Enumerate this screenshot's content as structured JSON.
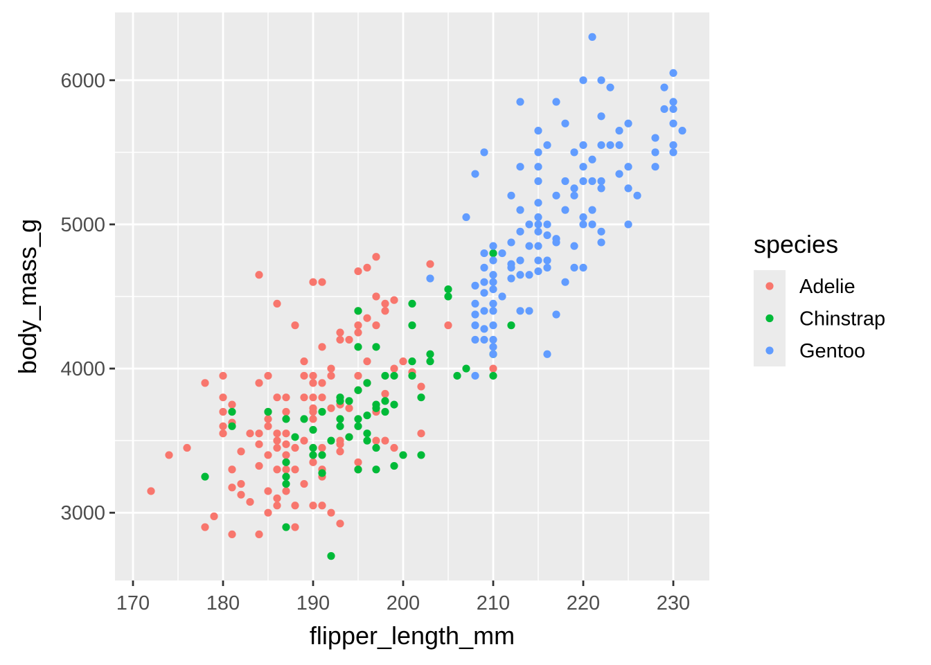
{
  "chart_data": {
    "type": "scatter",
    "title": "",
    "xlabel": "flipper_length_mm",
    "ylabel": "body_mass_g",
    "xlim": [
      168,
      234
    ],
    "ylim": [
      2530,
      6470
    ],
    "x_ticks": [
      170,
      180,
      190,
      200,
      210,
      220,
      230
    ],
    "y_ticks": [
      3000,
      4000,
      5000,
      6000
    ],
    "grid": true,
    "legend": {
      "title": "species",
      "position": "right"
    },
    "colors": {
      "panel": "#EBEBEB",
      "grid": "#FFFFFF"
    },
    "series": [
      {
        "name": "Adelie",
        "color": "#F8766D",
        "points": [
          [
            172,
            3150
          ],
          [
            174,
            3400
          ],
          [
            176,
            3450
          ],
          [
            178,
            3900
          ],
          [
            178,
            2900
          ],
          [
            179,
            2975
          ],
          [
            180,
            3950
          ],
          [
            180,
            3800
          ],
          [
            180,
            3700
          ],
          [
            180,
            3600
          ],
          [
            180,
            3550
          ],
          [
            181,
            3750
          ],
          [
            181,
            3625
          ],
          [
            181,
            3300
          ],
          [
            181,
            3175
          ],
          [
            181,
            2850
          ],
          [
            182,
            3425
          ],
          [
            182,
            3200
          ],
          [
            182,
            3125
          ],
          [
            183,
            3550
          ],
          [
            183,
            3075
          ],
          [
            184,
            4650
          ],
          [
            184,
            3900
          ],
          [
            184,
            3550
          ],
          [
            184,
            3475
          ],
          [
            184,
            3325
          ],
          [
            184,
            2850
          ],
          [
            185,
            3950
          ],
          [
            185,
            3700
          ],
          [
            185,
            3650
          ],
          [
            185,
            3600
          ],
          [
            185,
            3400
          ],
          [
            185,
            3150
          ],
          [
            185,
            3000
          ],
          [
            186,
            4450
          ],
          [
            186,
            3800
          ],
          [
            186,
            3550
          ],
          [
            186,
            3500
          ],
          [
            186,
            3450
          ],
          [
            186,
            3300
          ],
          [
            186,
            3100
          ],
          [
            186,
            3050
          ],
          [
            187,
            3800
          ],
          [
            187,
            3700
          ],
          [
            187,
            3550
          ],
          [
            187,
            3475
          ],
          [
            187,
            3400
          ],
          [
            187,
            3300
          ],
          [
            187,
            3150
          ],
          [
            188,
            4300
          ],
          [
            188,
            3450
          ],
          [
            188,
            3300
          ],
          [
            188,
            3050
          ],
          [
            188,
            2900
          ],
          [
            189,
            4050
          ],
          [
            189,
            3950
          ],
          [
            189,
            3800
          ],
          [
            189,
            3500
          ],
          [
            189,
            3200
          ],
          [
            190,
            4600
          ],
          [
            190,
            3950
          ],
          [
            190,
            3900
          ],
          [
            190,
            3800
          ],
          [
            190,
            3725
          ],
          [
            190,
            3700
          ],
          [
            190,
            3650
          ],
          [
            190,
            3450
          ],
          [
            190,
            3350
          ],
          [
            190,
            3050
          ],
          [
            191,
            4600
          ],
          [
            191,
            4150
          ],
          [
            191,
            3900
          ],
          [
            191,
            3800
          ],
          [
            191,
            3450
          ],
          [
            191,
            3300
          ],
          [
            191,
            3250
          ],
          [
            191,
            3050
          ],
          [
            192,
            4000
          ],
          [
            192,
            3950
          ],
          [
            192,
            3725
          ],
          [
            192,
            3000
          ],
          [
            193,
            4250
          ],
          [
            193,
            4200
          ],
          [
            193,
            3750
          ],
          [
            193,
            3500
          ],
          [
            193,
            3475
          ],
          [
            193,
            3425
          ],
          [
            193,
            2925
          ],
          [
            194,
            4200
          ],
          [
            194,
            3725
          ],
          [
            194,
            3525
          ],
          [
            195,
            4675
          ],
          [
            195,
            4400
          ],
          [
            195,
            4300
          ],
          [
            195,
            4250
          ],
          [
            195,
            3950
          ],
          [
            195,
            3850
          ],
          [
            195,
            3350
          ],
          [
            195,
            3300
          ],
          [
            196,
            4700
          ],
          [
            196,
            4350
          ],
          [
            196,
            4050
          ],
          [
            196,
            3900
          ],
          [
            197,
            4775
          ],
          [
            197,
            4500
          ],
          [
            197,
            4300
          ],
          [
            197,
            3700
          ],
          [
            197,
            3500
          ],
          [
            198,
            4450
          ],
          [
            198,
            4400
          ],
          [
            198,
            3825
          ],
          [
            198,
            3500
          ],
          [
            199,
            4475
          ],
          [
            199,
            4000
          ],
          [
            199,
            3450
          ],
          [
            200,
            4050
          ],
          [
            201,
            3975
          ],
          [
            202,
            3875
          ],
          [
            202,
            3550
          ],
          [
            203,
            4725
          ],
          [
            205,
            4300
          ],
          [
            210,
            4000
          ]
        ]
      },
      {
        "name": "Chinstrap",
        "color": "#00BA38",
        "points": [
          [
            178,
            3250
          ],
          [
            181,
            3700
          ],
          [
            181,
            3600
          ],
          [
            185,
            3700
          ],
          [
            187,
            3650
          ],
          [
            187,
            3350
          ],
          [
            187,
            3250
          ],
          [
            187,
            3200
          ],
          [
            187,
            2900
          ],
          [
            188,
            3525
          ],
          [
            189,
            3650
          ],
          [
            190,
            3575
          ],
          [
            190,
            3450
          ],
          [
            190,
            3400
          ],
          [
            191,
            3700
          ],
          [
            191,
            3400
          ],
          [
            191,
            3275
          ],
          [
            192,
            3500
          ],
          [
            192,
            2700
          ],
          [
            193,
            3800
          ],
          [
            193,
            3775
          ],
          [
            193,
            3650
          ],
          [
            193,
            3600
          ],
          [
            194,
            3775
          ],
          [
            194,
            3525
          ],
          [
            195,
            4400
          ],
          [
            195,
            4150
          ],
          [
            195,
            3850
          ],
          [
            195,
            3650
          ],
          [
            195,
            3600
          ],
          [
            195,
            3300
          ],
          [
            196,
            3900
          ],
          [
            196,
            3675
          ],
          [
            196,
            3550
          ],
          [
            196,
            3500
          ],
          [
            197,
            4150
          ],
          [
            197,
            3750
          ],
          [
            197,
            3725
          ],
          [
            197,
            3450
          ],
          [
            197,
            3300
          ],
          [
            198,
            3950
          ],
          [
            198,
            3775
          ],
          [
            198,
            3700
          ],
          [
            199,
            3950
          ],
          [
            199,
            3750
          ],
          [
            199,
            3325
          ],
          [
            200,
            3400
          ],
          [
            201,
            4450
          ],
          [
            201,
            4300
          ],
          [
            201,
            4050
          ],
          [
            201,
            3950
          ],
          [
            202,
            3800
          ],
          [
            202,
            3400
          ],
          [
            203,
            4100
          ],
          [
            203,
            4050
          ],
          [
            205,
            4550
          ],
          [
            205,
            4500
          ],
          [
            206,
            3950
          ],
          [
            207,
            4000
          ],
          [
            210,
            4800
          ],
          [
            210,
            4100
          ],
          [
            210,
            3950
          ],
          [
            212,
            4300
          ]
        ]
      },
      {
        "name": "Gentoo",
        "color": "#619CFF",
        "points": [
          [
            203,
            4625
          ],
          [
            207,
            5050
          ],
          [
            208,
            5350
          ],
          [
            208,
            4575
          ],
          [
            208,
            4450
          ],
          [
            208,
            4375
          ],
          [
            208,
            4300
          ],
          [
            208,
            4200
          ],
          [
            208,
            3950
          ],
          [
            209,
            5500
          ],
          [
            209,
            4800
          ],
          [
            209,
            4700
          ],
          [
            209,
            4600
          ],
          [
            209,
            4525
          ],
          [
            209,
            4400
          ],
          [
            209,
            4275
          ],
          [
            209,
            4200
          ],
          [
            210,
            4850
          ],
          [
            210,
            4750
          ],
          [
            210,
            4650
          ],
          [
            210,
            4600
          ],
          [
            210,
            4550
          ],
          [
            210,
            4450
          ],
          [
            210,
            4400
          ],
          [
            210,
            4300
          ],
          [
            210,
            4200
          ],
          [
            210,
            4150
          ],
          [
            210,
            4100
          ],
          [
            211,
            4800
          ],
          [
            211,
            4500
          ],
          [
            212,
            5200
          ],
          [
            212,
            4875
          ],
          [
            212,
            4725
          ],
          [
            212,
            4700
          ],
          [
            212,
            4625
          ],
          [
            213,
            5850
          ],
          [
            213,
            5400
          ],
          [
            213,
            5100
          ],
          [
            213,
            4950
          ],
          [
            213,
            4750
          ],
          [
            213,
            4650
          ],
          [
            213,
            4400
          ],
          [
            214,
            5000
          ],
          [
            214,
            4850
          ],
          [
            214,
            4650
          ],
          [
            214,
            4400
          ],
          [
            215,
            5650
          ],
          [
            215,
            5500
          ],
          [
            215,
            5400
          ],
          [
            215,
            5300
          ],
          [
            215,
            5150
          ],
          [
            215,
            5050
          ],
          [
            215,
            5000
          ],
          [
            215,
            4950
          ],
          [
            215,
            4850
          ],
          [
            215,
            4750
          ],
          [
            215,
            4675
          ],
          [
            216,
            5550
          ],
          [
            216,
            5000
          ],
          [
            216,
            4925
          ],
          [
            216,
            4750
          ],
          [
            216,
            4700
          ],
          [
            216,
            4100
          ],
          [
            217,
            5850
          ],
          [
            217,
            5200
          ],
          [
            217,
            4900
          ],
          [
            217,
            4875
          ],
          [
            217,
            4375
          ],
          [
            218,
            5700
          ],
          [
            218,
            5300
          ],
          [
            218,
            5100
          ],
          [
            218,
            4600
          ],
          [
            219,
            5500
          ],
          [
            219,
            5250
          ],
          [
            219,
            5200
          ],
          [
            219,
            4850
          ],
          [
            219,
            4700
          ],
          [
            220,
            6000
          ],
          [
            220,
            5550
          ],
          [
            220,
            5400
          ],
          [
            220,
            5300
          ],
          [
            220,
            5050
          ],
          [
            220,
            5000
          ],
          [
            220,
            4700
          ],
          [
            221,
            6300
          ],
          [
            221,
            5450
          ],
          [
            221,
            5300
          ],
          [
            221,
            5100
          ],
          [
            221,
            5000
          ],
          [
            222,
            6000
          ],
          [
            222,
            5750
          ],
          [
            222,
            5550
          ],
          [
            222,
            5300
          ],
          [
            222,
            5250
          ],
          [
            222,
            4950
          ],
          [
            222,
            4875
          ],
          [
            223,
            5950
          ],
          [
            223,
            5550
          ],
          [
            224,
            5650
          ],
          [
            224,
            5550
          ],
          [
            224,
            5350
          ],
          [
            225,
            5700
          ],
          [
            225,
            5400
          ],
          [
            225,
            5250
          ],
          [
            225,
            5000
          ],
          [
            226,
            5200
          ],
          [
            228,
            5600
          ],
          [
            228,
            5500
          ],
          [
            228,
            5400
          ],
          [
            229,
            5950
          ],
          [
            229,
            5800
          ],
          [
            230,
            6050
          ],
          [
            230,
            5850
          ],
          [
            230,
            5800
          ],
          [
            230,
            5700
          ],
          [
            230,
            5550
          ],
          [
            230,
            5500
          ],
          [
            231,
            5650
          ]
        ]
      }
    ]
  }
}
